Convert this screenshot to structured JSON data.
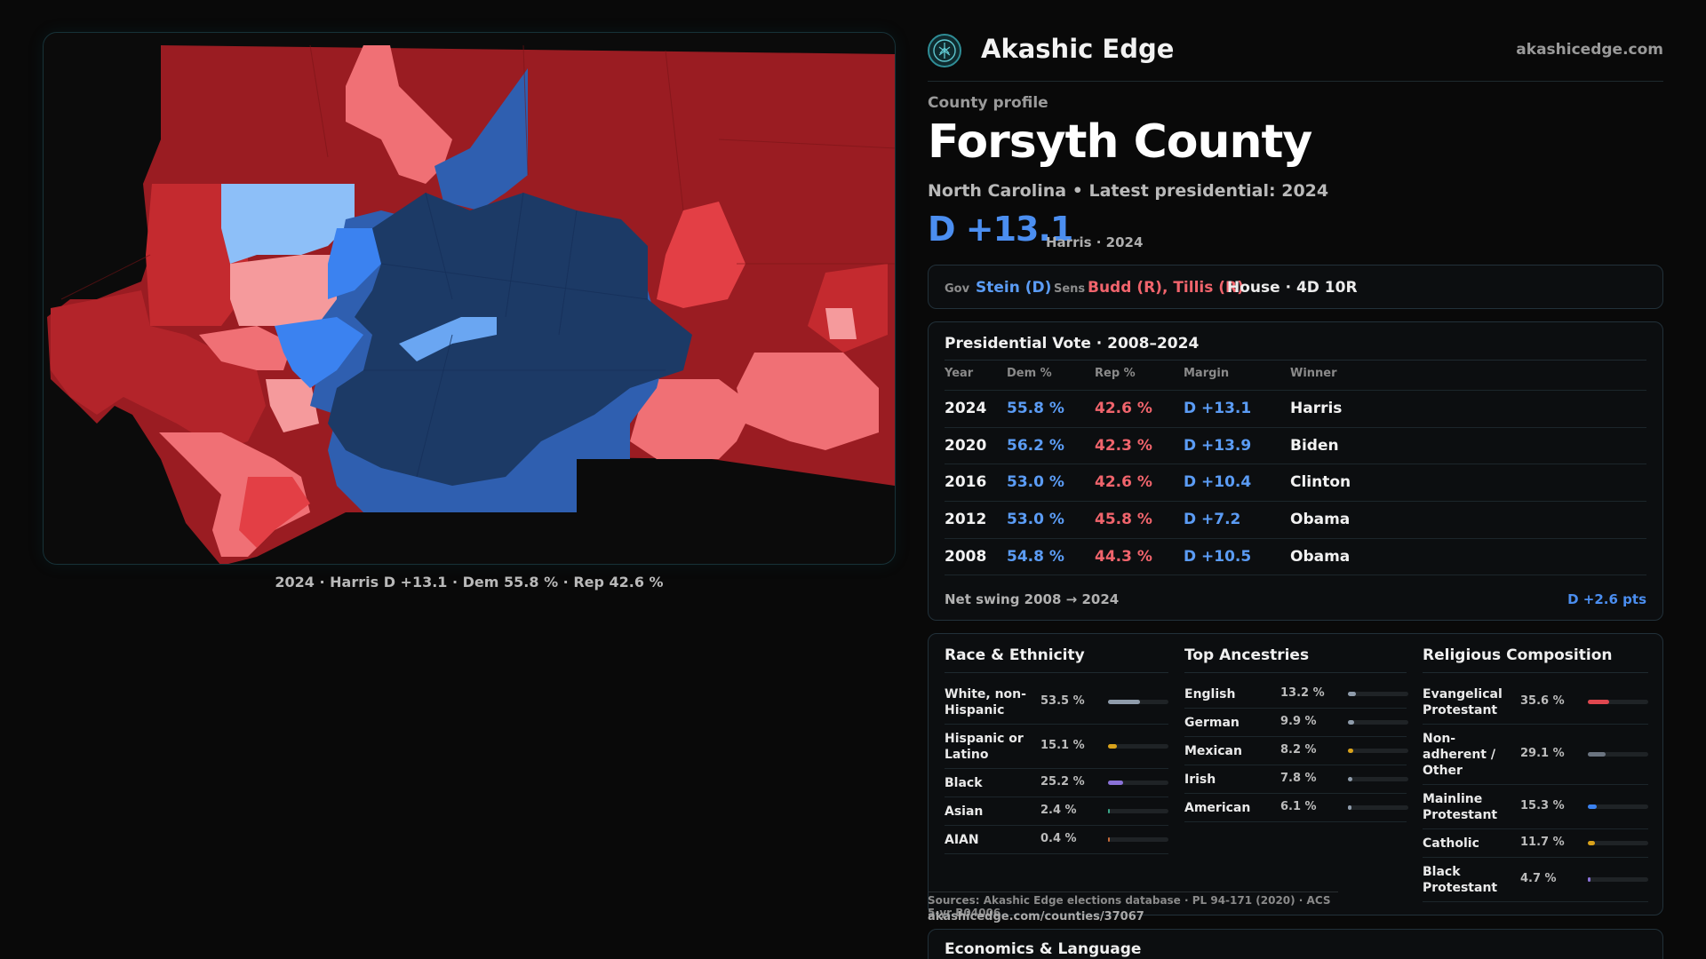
{
  "map": {
    "caption": "2024 · Harris D +13.1 · Dem 55.8 % · Rep 42.6 %",
    "colors": {
      "dark_red": "#9a1c22",
      "red": "#c42a2f",
      "mid_red": "#e33f45",
      "light_red": "#f07075",
      "pale_red": "#f59a9c",
      "navy": "#1c3a66",
      "blue": "#2f5fb0",
      "bright_blue": "#3b82f0",
      "light_blue": "#8dbff8"
    }
  },
  "brand": {
    "name": "Akashic Edge",
    "url": "akashicedge.com",
    "logo_icon": "tree-of-life-icon"
  },
  "profile": {
    "kicker": "County profile",
    "title": "Forsyth County",
    "subtitle": "North Carolina • Latest presidential: 2024",
    "margin": "D +13.1",
    "margin_sub": "Harris · 2024"
  },
  "offices": {
    "gov_label": "Gov",
    "gov_value": "Stein (D)",
    "sens_label": "Sens",
    "sens_value": "Budd (R), Tillis (R)",
    "house": "House · 4D 10R"
  },
  "presidential": {
    "title": "Presidential Vote · 2008–2024",
    "headers": [
      "Year",
      "Dem %",
      "Rep %",
      "Margin",
      "Winner"
    ],
    "rows": [
      {
        "year": "2024",
        "dem": "55.8 %",
        "rep": "42.6 %",
        "margin": "D +13.1",
        "winner": "Harris"
      },
      {
        "year": "2020",
        "dem": "56.2 %",
        "rep": "42.3 %",
        "margin": "D +13.9",
        "winner": "Biden"
      },
      {
        "year": "2016",
        "dem": "53.0 %",
        "rep": "42.6 %",
        "margin": "D +10.4",
        "winner": "Clinton"
      },
      {
        "year": "2012",
        "dem": "53.0 %",
        "rep": "45.8 %",
        "margin": "D +7.2",
        "winner": "Obama"
      },
      {
        "year": "2008",
        "dem": "54.8 %",
        "rep": "44.3 %",
        "margin": "D +10.5",
        "winner": "Obama"
      }
    ],
    "swing_label": "Net swing 2008 → 2024",
    "swing_value": "D +2.6 pts"
  },
  "race": {
    "title": "Race & Ethnicity",
    "rows": [
      {
        "label": "White, non-Hispanic",
        "pct": "53.5 %",
        "value": 53.5,
        "color": "#8f9cab"
      },
      {
        "label": "Hispanic or Latino",
        "pct": "15.1 %",
        "value": 15.1,
        "color": "#d9a21b"
      },
      {
        "label": "Black",
        "pct": "25.2 %",
        "value": 25.2,
        "color": "#8a72d8"
      },
      {
        "label": "Asian",
        "pct": "2.4 %",
        "value": 2.4,
        "color": "#3aa88a"
      },
      {
        "label": "AIAN",
        "pct": "0.4 %",
        "value": 0.4,
        "color": "#c46a3a"
      }
    ]
  },
  "ancestries": {
    "title": "Top Ancestries",
    "rows": [
      {
        "label": "English",
        "pct": "13.2 %",
        "value": 13.2,
        "color": "#8f9cab"
      },
      {
        "label": "German",
        "pct": "9.9 %",
        "value": 9.9,
        "color": "#8f9cab"
      },
      {
        "label": "Mexican",
        "pct": "8.2 %",
        "value": 8.2,
        "color": "#d9a21b"
      },
      {
        "label": "Irish",
        "pct": "7.8 %",
        "value": 7.8,
        "color": "#8f9cab"
      },
      {
        "label": "American",
        "pct": "6.1 %",
        "value": 6.1,
        "color": "#8f9cab"
      }
    ]
  },
  "religion": {
    "title": "Religious Composition",
    "rows": [
      {
        "label": "Evangelical Protestant",
        "pct": "35.6 %",
        "value": 35.6,
        "color": "#e0474f"
      },
      {
        "label": "Non-adherent / Other",
        "pct": "29.1 %",
        "value": 29.1,
        "color": "#6b7480"
      },
      {
        "label": "Mainline Protestant",
        "pct": "15.3 %",
        "value": 15.3,
        "color": "#3b82f0"
      },
      {
        "label": "Catholic",
        "pct": "11.7 %",
        "value": 11.7,
        "color": "#d9a21b"
      },
      {
        "label": "Black Protestant",
        "pct": "4.7 %",
        "value": 4.7,
        "color": "#8a72d8"
      }
    ]
  },
  "sources": {
    "text": "Sources: Akashic Edge elections database · PL 94-171 (2020) · ACS 5-yr B04006",
    "url": "akashicedge.com/counties/37067"
  },
  "economics": {
    "title": "Economics & Language"
  }
}
